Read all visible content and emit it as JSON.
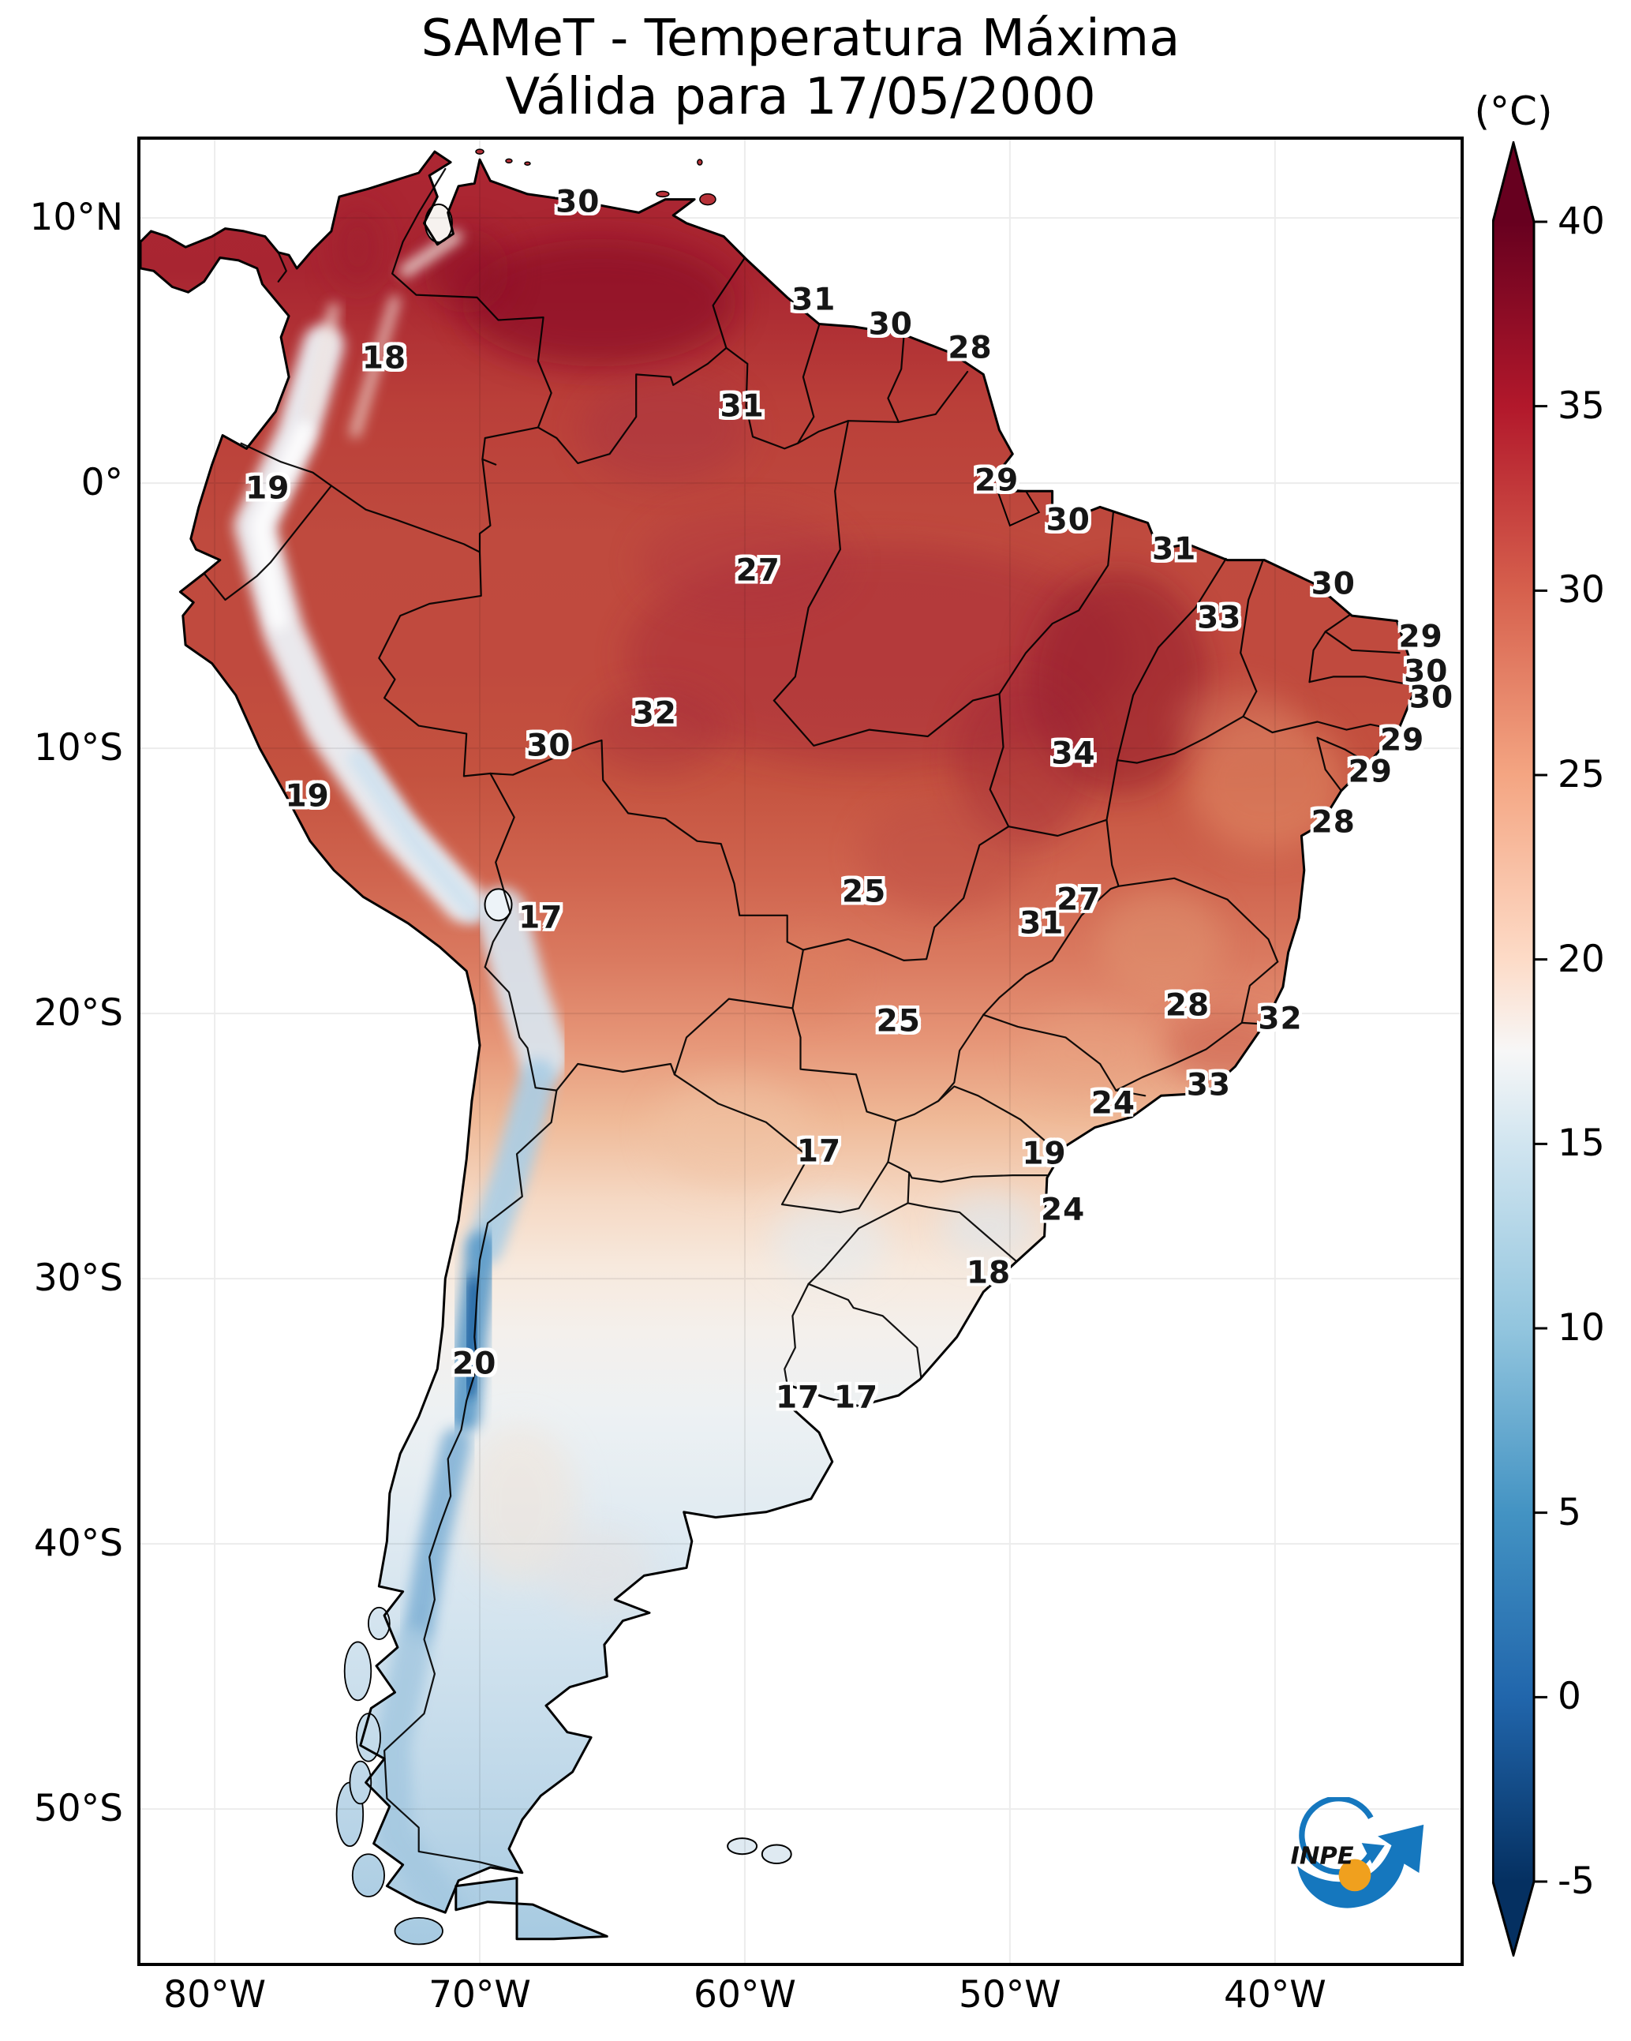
{
  "title": {
    "line1": "SAMeT - Temperatura Máxima",
    "line2": "Válida para 17/05/2000"
  },
  "colorbar": {
    "unit_label": "(°C)",
    "vmin": -5,
    "vmax": 40,
    "ticks": [
      {
        "label": "40",
        "value": 40
      },
      {
        "label": "35",
        "value": 35
      },
      {
        "label": "30",
        "value": 30
      },
      {
        "label": "25",
        "value": 25
      },
      {
        "label": "20",
        "value": 20
      },
      {
        "label": "15",
        "value": 15
      },
      {
        "label": "10",
        "value": 10
      },
      {
        "label": "5",
        "value": 5
      },
      {
        "label": "0",
        "value": 0
      },
      {
        "label": "-5",
        "value": -5
      }
    ],
    "stops": [
      {
        "v": 40,
        "c": "#67001f"
      },
      {
        "v": 35,
        "c": "#b2182b"
      },
      {
        "v": 30,
        "c": "#d6604d"
      },
      {
        "v": 25,
        "c": "#f4a582"
      },
      {
        "v": 20,
        "c": "#fddbc7"
      },
      {
        "v": 17.5,
        "c": "#f7f7f7"
      },
      {
        "v": 15,
        "c": "#d1e5f0"
      },
      {
        "v": 10,
        "c": "#92c5de"
      },
      {
        "v": 5,
        "c": "#4393c3"
      },
      {
        "v": 0,
        "c": "#2166ac"
      },
      {
        "v": -5,
        "c": "#053061"
      }
    ]
  },
  "axes": {
    "lat_ticks": [
      {
        "label": "10°N",
        "deg": 10
      },
      {
        "label": "0°",
        "deg": 0
      },
      {
        "label": "10°S",
        "deg": -10
      },
      {
        "label": "20°S",
        "deg": -20
      },
      {
        "label": "30°S",
        "deg": -30
      },
      {
        "label": "40°S",
        "deg": -40
      },
      {
        "label": "50°S",
        "deg": -50
      }
    ],
    "lon_ticks": [
      {
        "label": "80°W",
        "deg": -80
      },
      {
        "label": "70°W",
        "deg": -70
      },
      {
        "label": "60°W",
        "deg": -60
      },
      {
        "label": "50°W",
        "deg": -50
      },
      {
        "label": "40°W",
        "deg": -40
      }
    ]
  },
  "logo": {
    "text": "INPE"
  },
  "chart_data": {
    "type": "heatmap",
    "title": "SAMeT - Temperatura Máxima",
    "subtitle": "Válida para 17/05/2000",
    "variable": "Temperatura Máxima",
    "valid_date": "17/05/2000",
    "unit": "°C",
    "colormap": "RdBu_r",
    "value_range": [
      -5,
      40
    ],
    "region": "South America",
    "grid": true,
    "legend_position": "right-colorbar",
    "map_extent": {
      "lon_min": -82.8,
      "lon_max": -33.0,
      "lat_min": -55.8,
      "lat_max": 12.95
    },
    "lon_ticks_deg": [
      -80,
      -70,
      -60,
      -50,
      -40
    ],
    "lat_ticks_deg": [
      10,
      0,
      -10,
      -20,
      -30,
      -40,
      -50
    ],
    "station_labels": [
      {
        "value": 30,
        "lon": -66.3,
        "lat": 10.6
      },
      {
        "value": 31,
        "lon": -57.4,
        "lat": 6.9
      },
      {
        "value": 30,
        "lon": -54.5,
        "lat": 6.0
      },
      {
        "value": 28,
        "lon": -51.5,
        "lat": 5.1
      },
      {
        "value": 18,
        "lon": -73.6,
        "lat": 4.7
      },
      {
        "value": 31,
        "lon": -60.1,
        "lat": 2.9
      },
      {
        "value": 19,
        "lon": -78.0,
        "lat": -0.2
      },
      {
        "value": 29,
        "lon": -50.5,
        "lat": 0.1
      },
      {
        "value": 30,
        "lon": -47.8,
        "lat": -1.4
      },
      {
        "value": 31,
        "lon": -43.8,
        "lat": -2.5
      },
      {
        "value": 27,
        "lon": -59.5,
        "lat": -3.3
      },
      {
        "value": 30,
        "lon": -37.8,
        "lat": -3.8
      },
      {
        "value": 33,
        "lon": -42.1,
        "lat": -5.1
      },
      {
        "value": 29,
        "lon": -34.5,
        "lat": -5.8
      },
      {
        "value": 30,
        "lon": -34.3,
        "lat": -7.1
      },
      {
        "value": 30,
        "lon": -34.1,
        "lat": -8.1
      },
      {
        "value": 32,
        "lon": -63.4,
        "lat": -8.7
      },
      {
        "value": 29,
        "lon": -35.2,
        "lat": -9.7
      },
      {
        "value": 30,
        "lon": -67.4,
        "lat": -9.9
      },
      {
        "value": 34,
        "lon": -47.6,
        "lat": -10.2
      },
      {
        "value": 29,
        "lon": -36.4,
        "lat": -10.9
      },
      {
        "value": 19,
        "lon": -76.5,
        "lat": -11.8
      },
      {
        "value": 28,
        "lon": -37.8,
        "lat": -12.8
      },
      {
        "value": 25,
        "lon": -55.5,
        "lat": -15.4
      },
      {
        "value": 27,
        "lon": -47.4,
        "lat": -15.7
      },
      {
        "value": 31,
        "lon": -48.8,
        "lat": -16.6
      },
      {
        "value": 17,
        "lon": -67.7,
        "lat": -16.4
      },
      {
        "value": 25,
        "lon": -54.2,
        "lat": -20.3
      },
      {
        "value": 28,
        "lon": -43.3,
        "lat": -19.7
      },
      {
        "value": 32,
        "lon": -39.8,
        "lat": -20.2
      },
      {
        "value": 24,
        "lon": -46.1,
        "lat": -23.4
      },
      {
        "value": 33,
        "lon": -42.5,
        "lat": -22.7
      },
      {
        "value": 17,
        "lon": -57.2,
        "lat": -25.2
      },
      {
        "value": 19,
        "lon": -48.7,
        "lat": -25.3
      },
      {
        "value": 24,
        "lon": -48.0,
        "lat": -27.4
      },
      {
        "value": 18,
        "lon": -50.8,
        "lat": -29.8
      },
      {
        "value": 20,
        "lon": -70.2,
        "lat": -33.2
      },
      {
        "value": 17,
        "lon": -58.0,
        "lat": -34.5
      },
      {
        "value": 17,
        "lon": -55.8,
        "lat": -34.5
      }
    ]
  }
}
